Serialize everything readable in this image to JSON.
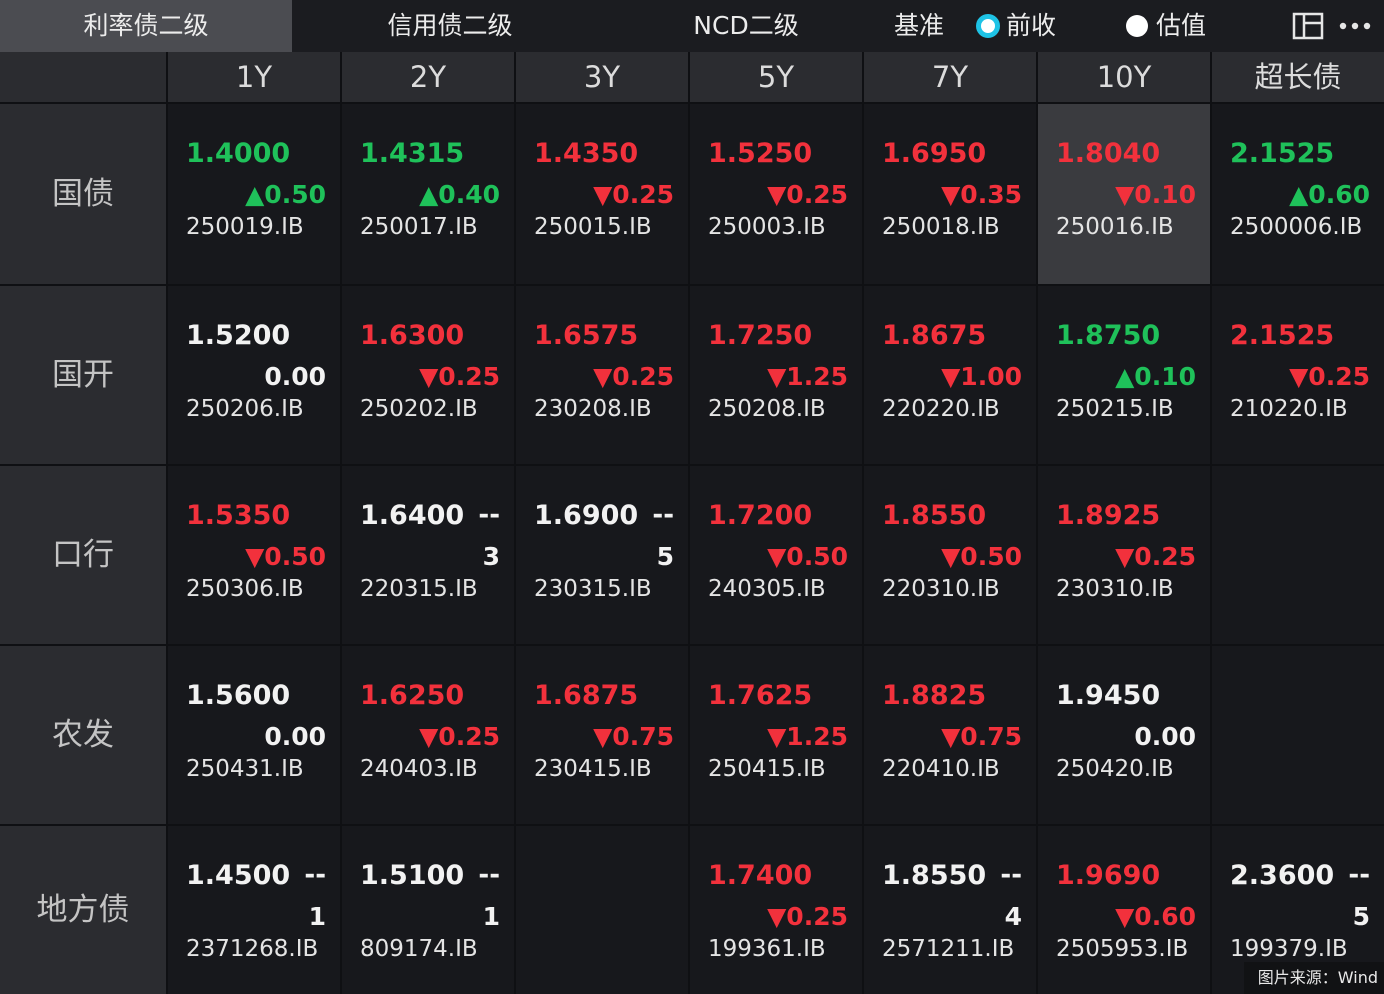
{
  "tabs": [
    {
      "label": "利率债二级",
      "active": true
    },
    {
      "label": "信用债二级",
      "active": false
    },
    {
      "label": "NCD二级",
      "active": false
    }
  ],
  "benchmark": {
    "label": "基准",
    "options": [
      {
        "label": "前收",
        "selected": true
      },
      {
        "label": "估值",
        "selected": false
      }
    ]
  },
  "palette": {
    "up": "#1fc15a",
    "down": "#f2313c",
    "flat": "#f2f2f2"
  },
  "columns": [
    "1Y",
    "2Y",
    "3Y",
    "5Y",
    "7Y",
    "10Y",
    "超长债"
  ],
  "rows": [
    {
      "name": "国债",
      "cells": [
        {
          "yield": "1.4000",
          "trend": "up",
          "change": "▲0.50",
          "code": "250019.IB"
        },
        {
          "yield": "1.4315",
          "trend": "up",
          "change": "▲0.40",
          "code": "250017.IB"
        },
        {
          "yield": "1.4350",
          "trend": "down",
          "change": "▼0.25",
          "code": "250015.IB"
        },
        {
          "yield": "1.5250",
          "trend": "down",
          "change": "▼0.25",
          "code": "250003.IB"
        },
        {
          "yield": "1.6950",
          "trend": "down",
          "change": "▼0.35",
          "code": "250018.IB"
        },
        {
          "yield": "1.8040",
          "trend": "down",
          "change": "▼0.10",
          "code": "250016.IB",
          "highlighted": true
        },
        {
          "yield": "2.1525",
          "trend": "up",
          "change": "▲0.60",
          "code": "2500006.IB"
        }
      ]
    },
    {
      "name": "国开",
      "cells": [
        {
          "yield": "1.5200",
          "trend": "flat",
          "change": "0.00",
          "code": "250206.IB"
        },
        {
          "yield": "1.6300",
          "trend": "down",
          "change": "▼0.25",
          "code": "250202.IB"
        },
        {
          "yield": "1.6575",
          "trend": "down",
          "change": "▼0.25",
          "code": "230208.IB"
        },
        {
          "yield": "1.7250",
          "trend": "down",
          "change": "▼1.25",
          "code": "250208.IB"
        },
        {
          "yield": "1.8675",
          "trend": "down",
          "change": "▼1.00",
          "code": "220220.IB"
        },
        {
          "yield": "1.8750",
          "trend": "up",
          "change": "▲0.10",
          "code": "250215.IB"
        },
        {
          "yield": "2.1525",
          "trend": "down",
          "change": "▼0.25",
          "code": "210220.IB"
        }
      ]
    },
    {
      "name": "口行",
      "cells": [
        {
          "yield": "1.5350",
          "trend": "down",
          "change": "▼0.50",
          "code": "250306.IB"
        },
        {
          "yield": "1.6400",
          "trend": "flat",
          "tag": "--",
          "change": "3",
          "code": "220315.IB"
        },
        {
          "yield": "1.6900",
          "trend": "flat",
          "tag": "--",
          "change": "5",
          "code": "230315.IB"
        },
        {
          "yield": "1.7200",
          "trend": "down",
          "change": "▼0.50",
          "code": "240305.IB"
        },
        {
          "yield": "1.8550",
          "trend": "down",
          "change": "▼0.50",
          "code": "220310.IB"
        },
        {
          "yield": "1.8925",
          "trend": "down",
          "change": "▼0.25",
          "code": "230310.IB"
        },
        null
      ]
    },
    {
      "name": "农发",
      "cells": [
        {
          "yield": "1.5600",
          "trend": "flat",
          "change": "0.00",
          "code": "250431.IB"
        },
        {
          "yield": "1.6250",
          "trend": "down",
          "change": "▼0.25",
          "code": "240403.IB"
        },
        {
          "yield": "1.6875",
          "trend": "down",
          "change": "▼0.75",
          "code": "230415.IB"
        },
        {
          "yield": "1.7625",
          "trend": "down",
          "change": "▼1.25",
          "code": "250415.IB"
        },
        {
          "yield": "1.8825",
          "trend": "down",
          "change": "▼0.75",
          "code": "220410.IB"
        },
        {
          "yield": "1.9450",
          "trend": "flat",
          "change": "0.00",
          "code": "250420.IB"
        },
        null
      ]
    },
    {
      "name": "地方债",
      "cells": [
        {
          "yield": "1.4500",
          "trend": "flat",
          "tag": "--",
          "change": "1",
          "code": "2371268.IB"
        },
        {
          "yield": "1.5100",
          "trend": "flat",
          "tag": "--",
          "change": "1",
          "code": "809174.IB"
        },
        null,
        {
          "yield": "1.7400",
          "trend": "down",
          "change": "▼0.25",
          "code": "199361.IB"
        },
        {
          "yield": "1.8550",
          "trend": "flat",
          "tag": "--",
          "change": "4",
          "code": "2571211.IB"
        },
        {
          "yield": "1.9690",
          "trend": "down",
          "change": "▼0.60",
          "code": "2505953.IB"
        },
        {
          "yield": "2.3600",
          "trend": "flat",
          "tag": "--",
          "change": "5",
          "code": "199379.IB"
        }
      ]
    }
  ],
  "source": "图片来源：Wind"
}
